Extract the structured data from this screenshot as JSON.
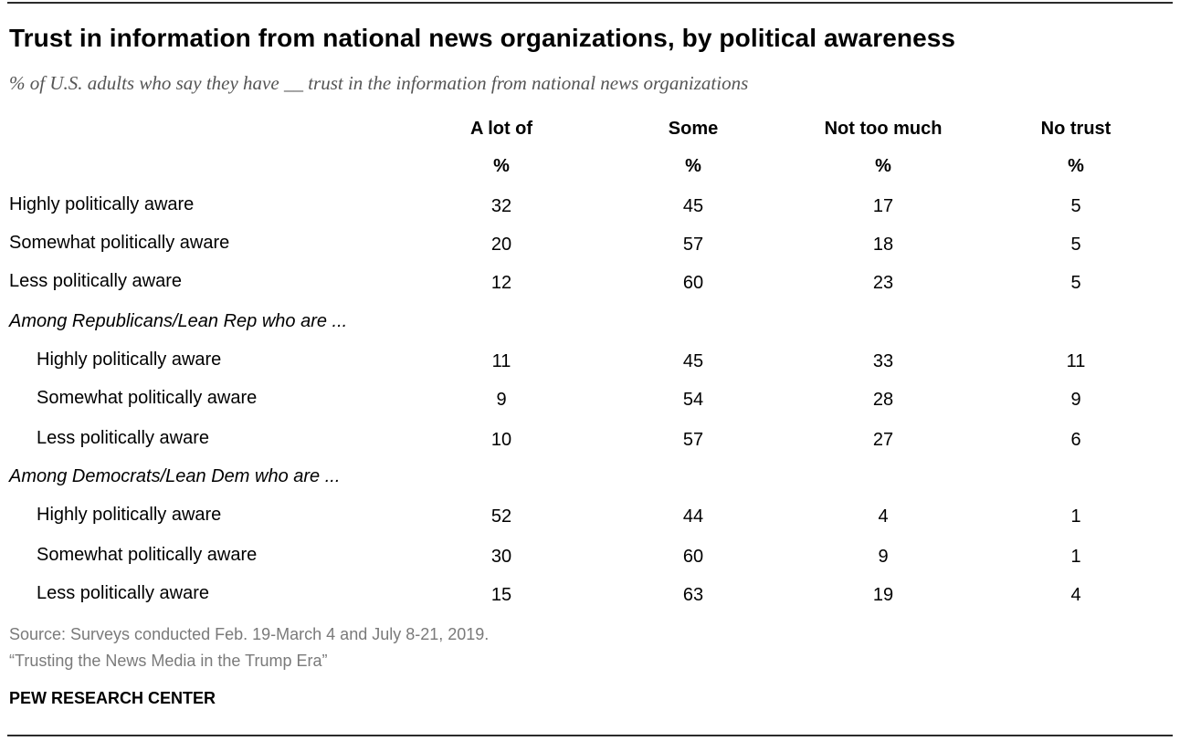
{
  "chart_data": {
    "type": "table",
    "title": "Trust in information from national news organizations, by political awareness",
    "subtitle": "% of U.S. adults who say they have __ trust in the information from national news organizations",
    "columns": [
      "A lot of",
      "Some",
      "Not too much",
      "No trust"
    ],
    "unit_row": [
      "%",
      "%",
      "%",
      "%"
    ],
    "rows": [
      {
        "kind": "row",
        "label": "Highly politically aware",
        "indent": false,
        "values": [
          "32",
          "45",
          "17",
          "5"
        ]
      },
      {
        "kind": "row",
        "label": "Somewhat politically aware",
        "indent": false,
        "values": [
          "20",
          "57",
          "18",
          "5"
        ]
      },
      {
        "kind": "row",
        "label": "Less politically aware",
        "indent": false,
        "values": [
          "12",
          "60",
          "23",
          "5"
        ]
      },
      {
        "kind": "group",
        "label": "Among Republicans/Lean Rep who are ..."
      },
      {
        "kind": "row",
        "label": "Highly politically aware",
        "indent": true,
        "values": [
          "11",
          "45",
          "33",
          "11"
        ]
      },
      {
        "kind": "row",
        "label": "Somewhat politically aware",
        "indent": true,
        "values": [
          "9",
          "54",
          "28",
          "9"
        ]
      },
      {
        "kind": "row",
        "label": "Less politically aware",
        "indent": true,
        "values": [
          "10",
          "57",
          "27",
          "6"
        ]
      },
      {
        "kind": "group",
        "label": "Among Democrats/Lean Dem who are ..."
      },
      {
        "kind": "row",
        "label": "Highly politically aware",
        "indent": true,
        "values": [
          "52",
          "44",
          "4",
          "1"
        ]
      },
      {
        "kind": "row",
        "label": "Somewhat politically aware",
        "indent": true,
        "values": [
          "30",
          "60",
          "9",
          "1"
        ]
      },
      {
        "kind": "row",
        "label": "Less politically aware",
        "indent": true,
        "values": [
          "15",
          "63",
          "19",
          "4"
        ]
      }
    ]
  },
  "footer": {
    "source": "Source: Surveys conducted Feb. 19-March 4 and July 8-21, 2019.",
    "report": "“Trusting the News Media in the Trump Era”",
    "brand": "PEW RESEARCH CENTER"
  }
}
